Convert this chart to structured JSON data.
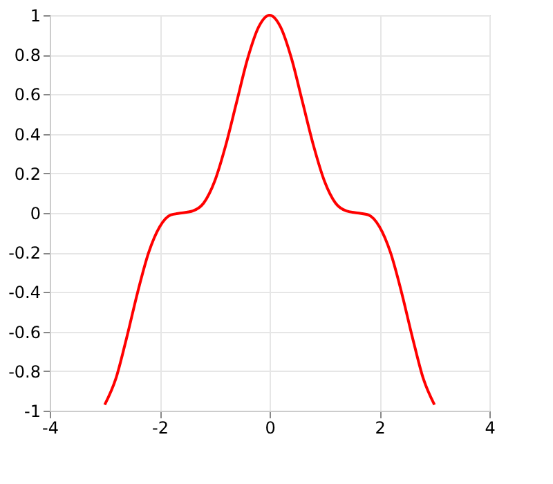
{
  "chart_data": {
    "type": "line",
    "x": [
      -3,
      -2.8,
      -2.6,
      -2.4,
      -2.2,
      -2,
      -1.8,
      -1.6,
      -1.4,
      -1.2,
      -1,
      -0.8,
      -0.6,
      -0.4,
      -0.2,
      0,
      0.2,
      0.4,
      0.6,
      0.8,
      1,
      1.2,
      1.4,
      1.6,
      1.8,
      2,
      2.2,
      2.4,
      2.6,
      2.8,
      3
    ],
    "series": [
      {
        "color": "#ff0000",
        "values": [
          -0.97,
          -0.84,
          -0.63,
          -0.4,
          -0.2,
          -0.07,
          -0.01,
          0,
          0.01,
          0.05,
          0.16,
          0.34,
          0.56,
          0.78,
          0.94,
          1,
          0.94,
          0.78,
          0.56,
          0.34,
          0.16,
          0.05,
          0.01,
          0,
          -0.01,
          -0.07,
          -0.2,
          -0.4,
          -0.63,
          -0.84,
          -0.97
        ]
      }
    ],
    "xlim": [
      -4,
      4
    ],
    "xticks": [
      -4,
      -2,
      0,
      2,
      4
    ],
    "ylim": [
      -1,
      1
    ],
    "yticks": [
      -1,
      -0.8,
      -0.6,
      -0.4,
      -0.2,
      0,
      0.2,
      0.4,
      0.6,
      0.8,
      1
    ],
    "grid": true,
    "marker": "none",
    "line_style": "solid"
  }
}
